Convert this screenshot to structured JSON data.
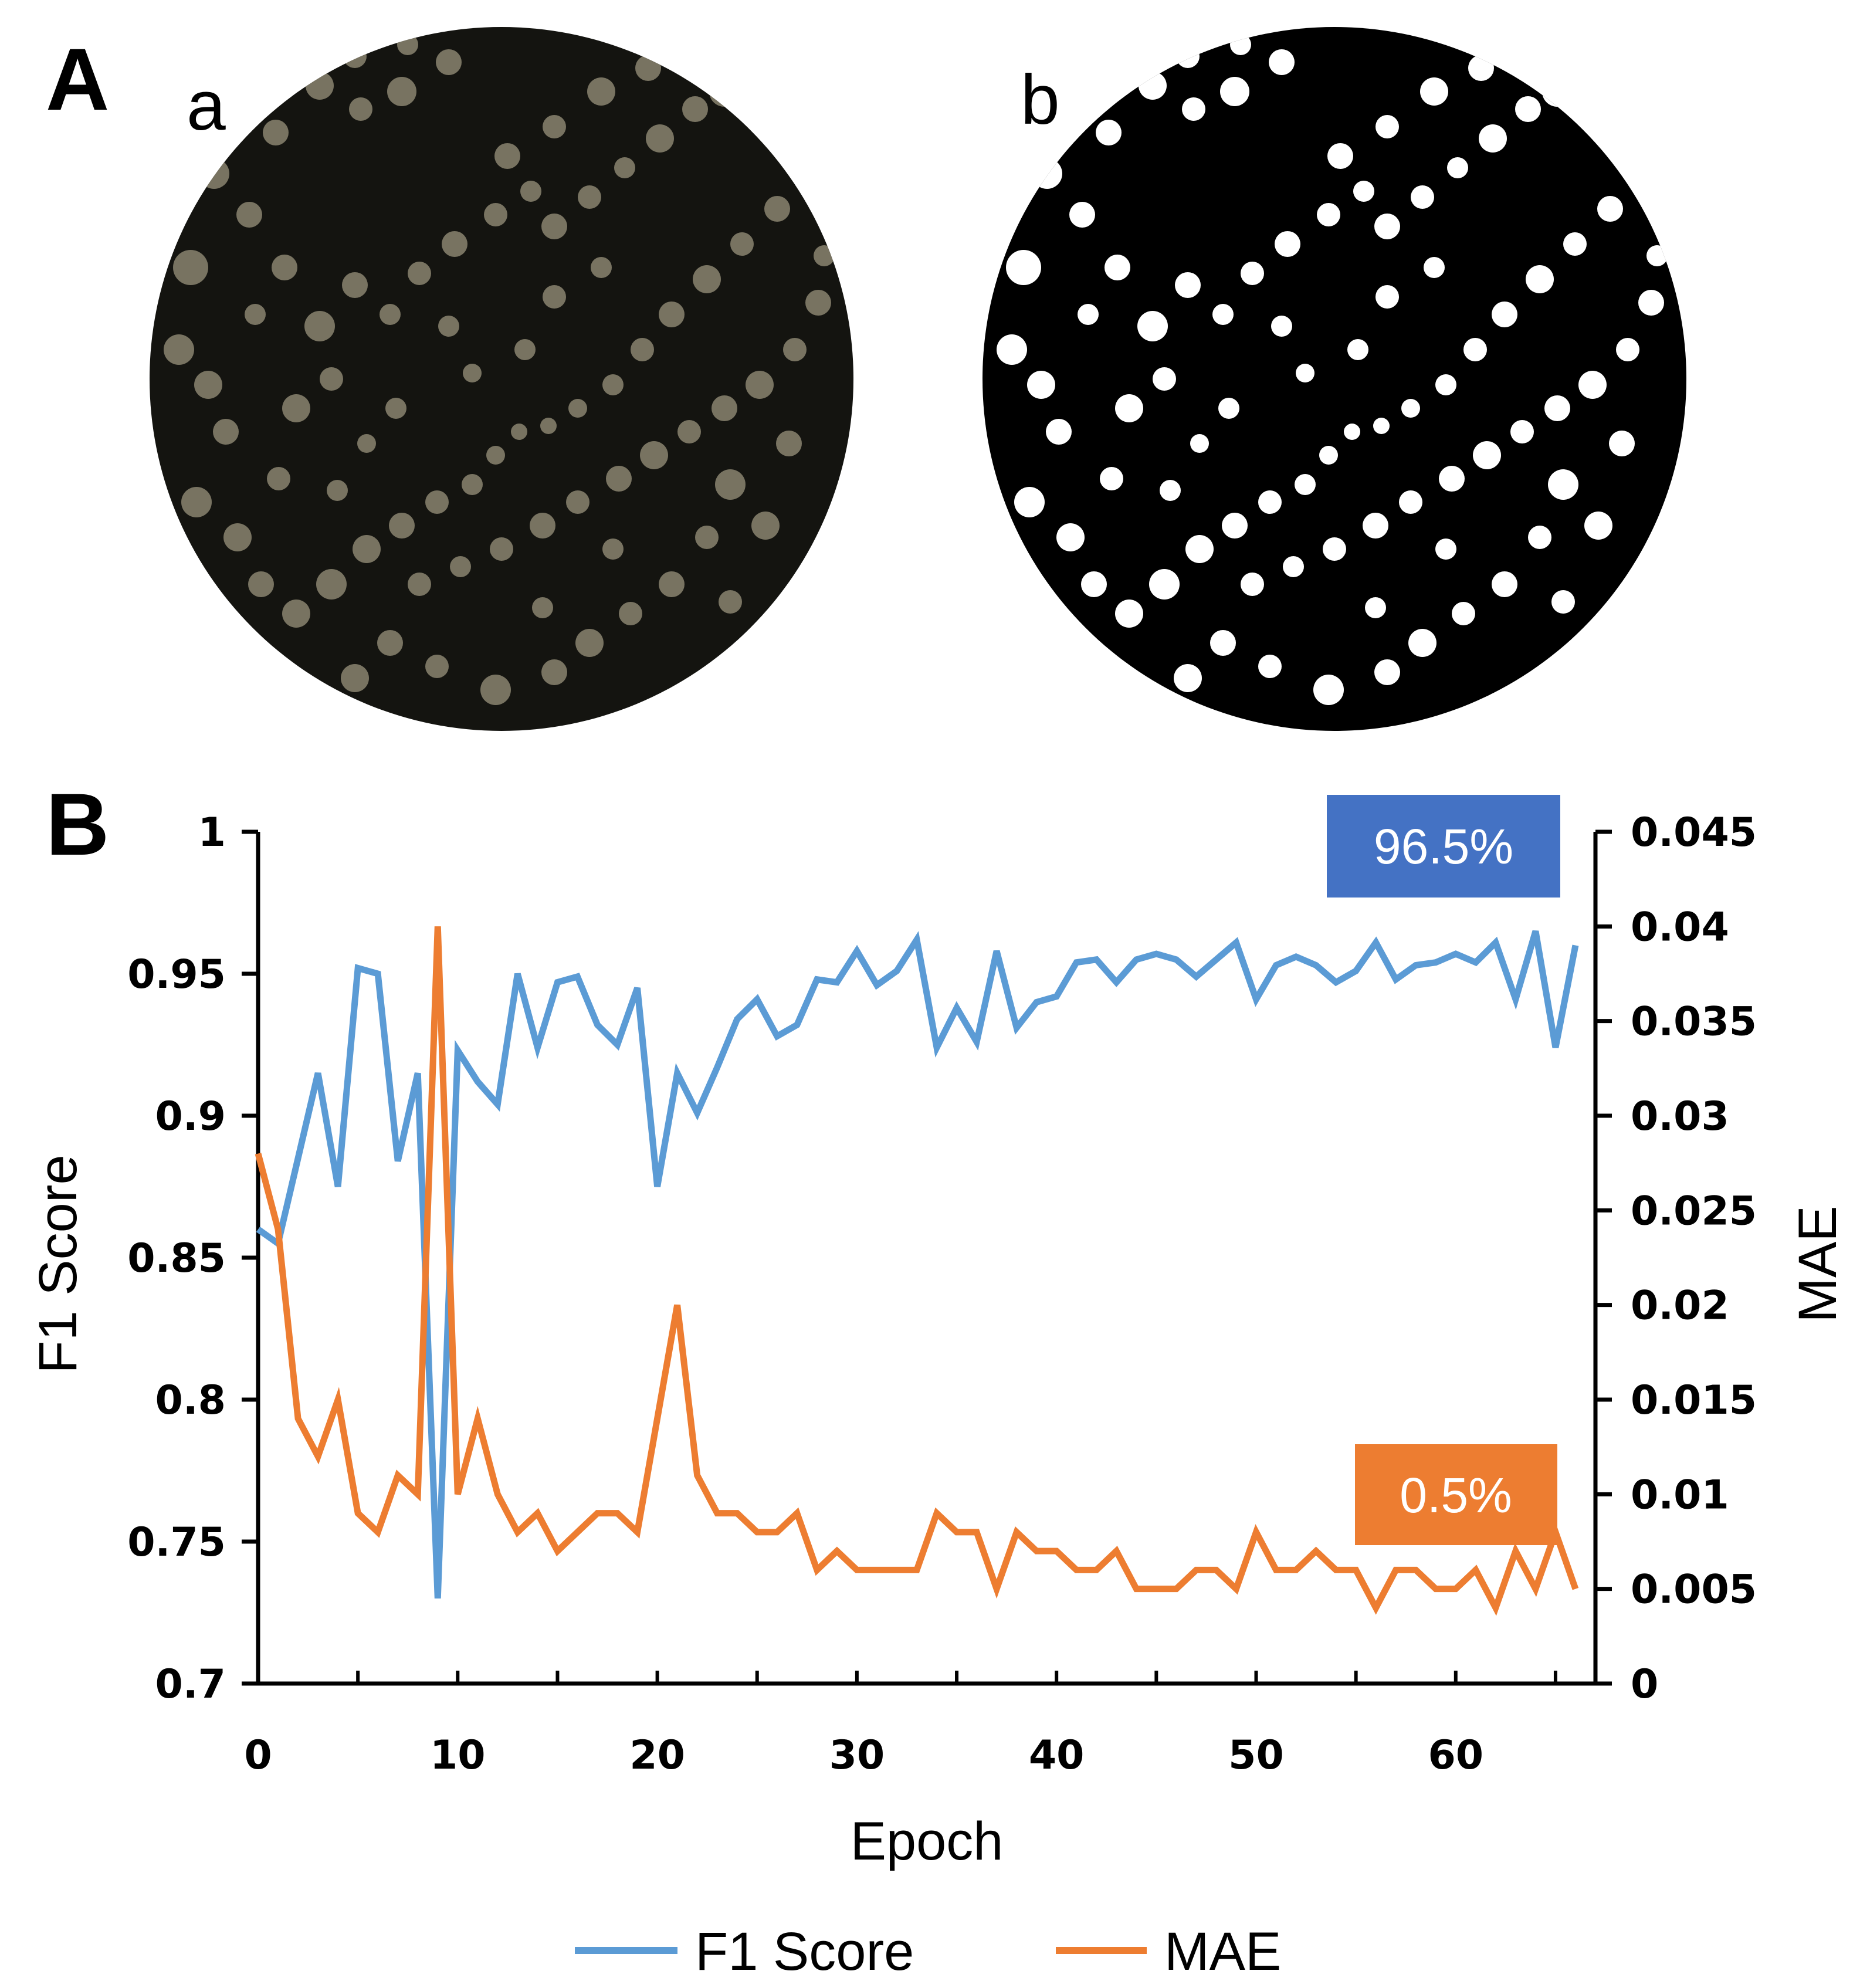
{
  "panels": {
    "a_label": "A",
    "a_sub_left": "a",
    "a_sub_right": "b",
    "b_label": "B"
  },
  "colors": {
    "f1": "#5b9bd5",
    "mae": "#ed7d31",
    "f1_box": "#4472c4",
    "mae_box": "#ed7d31",
    "dish_photo": "#141410",
    "colony": "#8a8470",
    "mask_bg": "#000000",
    "mask_fg": "#ffffff"
  },
  "chart_data": {
    "type": "line",
    "xlabel": "Epoch",
    "ylabel_left": "F1 Score",
    "ylabel_right": "MAE",
    "xlim": [
      0,
      67
    ],
    "ylim_left": [
      0.7,
      1.0
    ],
    "ylim_right": [
      0,
      0.045
    ],
    "x_ticks": [
      "0",
      "10",
      "20",
      "30",
      "40",
      "50",
      "60"
    ],
    "y_left_ticks": [
      "0.7",
      "0.75",
      "0.8",
      "0.85",
      "0.9",
      "0.95",
      "1"
    ],
    "y_right_ticks": [
      "0",
      "0.005",
      "0.01",
      "0.015",
      "0.02",
      "0.025",
      "0.03",
      "0.035",
      "0.04",
      "0.045"
    ],
    "series": [
      {
        "name": "F1 Score",
        "axis": "left",
        "values": [
          0.86,
          0.855,
          0.885,
          0.915,
          0.875,
          0.952,
          0.95,
          0.884,
          0.915,
          0.73,
          0.923,
          0.912,
          0.904,
          0.95,
          0.924,
          0.947,
          0.949,
          0.932,
          0.925,
          0.945,
          0.875,
          0.915,
          0.901,
          0.917,
          0.934,
          0.941,
          0.928,
          0.932,
          0.948,
          0.947,
          0.958,
          0.946,
          0.951,
          0.962,
          0.924,
          0.938,
          0.926,
          0.958,
          0.931,
          0.94,
          0.942,
          0.954,
          0.955,
          0.947,
          0.955,
          0.957,
          0.955,
          0.949,
          0.955,
          0.961,
          0.941,
          0.953,
          0.956,
          0.953,
          0.947,
          0.951,
          0.961,
          0.948,
          0.953,
          0.954,
          0.957,
          0.954,
          0.961,
          0.941,
          0.965,
          0.924,
          0.96
        ]
      },
      {
        "name": "MAE",
        "axis": "right",
        "values": [
          0.028,
          0.024,
          0.014,
          0.012,
          0.015,
          0.009,
          0.008,
          0.011,
          0.01,
          0.04,
          0.01,
          0.014,
          0.01,
          0.008,
          0.009,
          0.007,
          0.008,
          0.009,
          0.009,
          0.008,
          0.014,
          0.02,
          0.011,
          0.009,
          0.009,
          0.008,
          0.008,
          0.009,
          0.006,
          0.007,
          0.006,
          0.006,
          0.006,
          0.006,
          0.009,
          0.008,
          0.008,
          0.005,
          0.008,
          0.007,
          0.007,
          0.006,
          0.006,
          0.007,
          0.005,
          0.005,
          0.005,
          0.006,
          0.006,
          0.005,
          0.008,
          0.006,
          0.006,
          0.007,
          0.006,
          0.006,
          0.004,
          0.006,
          0.006,
          0.005,
          0.005,
          0.006,
          0.004,
          0.007,
          0.005,
          0.008,
          0.005
        ]
      }
    ],
    "annotations": [
      {
        "text": "96.5%",
        "series": "F1 Score"
      },
      {
        "text": "0.5%",
        "series": "MAE"
      }
    ],
    "legend": [
      "F1 Score",
      "MAE"
    ],
    "legend_position": "bottom-center"
  }
}
